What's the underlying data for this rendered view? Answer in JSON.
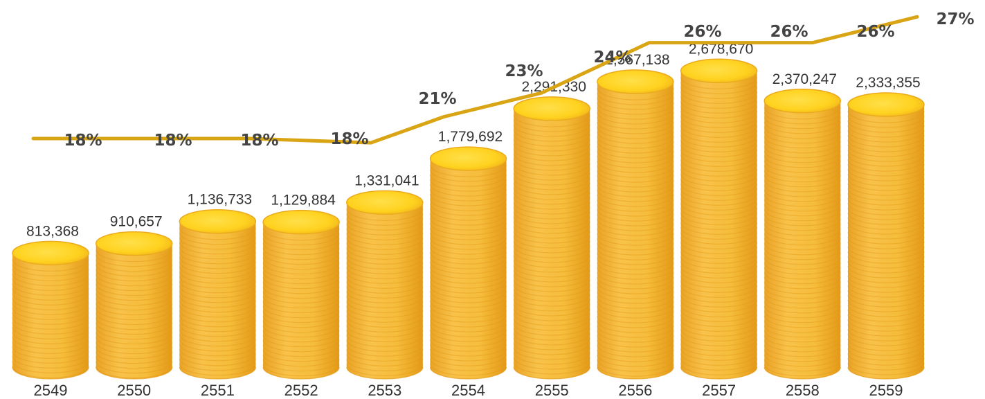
{
  "chart_data": {
    "type": "bar",
    "categories": [
      "2549",
      "2550",
      "2551",
      "2552",
      "2553",
      "2554",
      "2555",
      "2556",
      "2557",
      "2558",
      "2559"
    ],
    "series": [
      {
        "values": [
          813368,
          910657,
          1136733,
          1129884,
          1331041,
          1779692,
          2291330,
          2567138,
          2678670,
          2370247,
          2333355
        ],
        "labels": [
          "813,368",
          "910,657",
          "1,136,733",
          "1,129,884",
          "1,331,041",
          "1,779,692",
          "2,291,330",
          "2,567,138",
          "2,678,670",
          "2,370,247",
          "2,333,355"
        ]
      },
      {
        "type": "line",
        "values": [
          18,
          18,
          18,
          18,
          21,
          23,
          24,
          26,
          26,
          26,
          27
        ],
        "labels": [
          "18%",
          "18%",
          "18%",
          "18%",
          "21%",
          "23%",
          "24%",
          "26%",
          "26%",
          "26%",
          "27%"
        ]
      }
    ],
    "title": "",
    "xlabel": "",
    "ylabel": "",
    "grid": false,
    "colors": {
      "coin_top": "#FFD21F",
      "coin_body": "#F5B92E",
      "coin_edge": "#E39A17",
      "line": "#D9A514"
    }
  }
}
